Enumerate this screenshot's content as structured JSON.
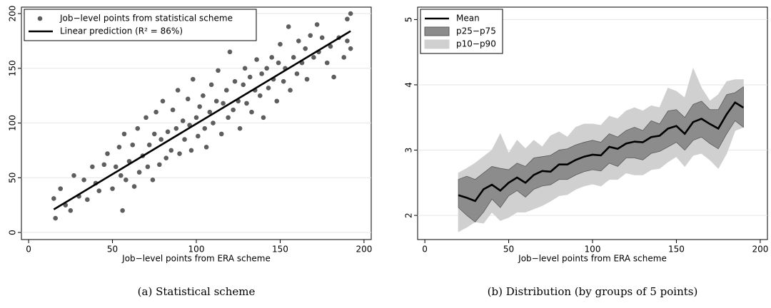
{
  "chart_data": [
    {
      "type": "scatter",
      "caption": "(a) Statistical scheme",
      "x_label": "Job−level points from ERA scheme",
      "xlim": [
        -4.3,
        204.3
      ],
      "ylim": [
        -6.5,
        205.9
      ],
      "xticks": [
        0,
        50,
        100,
        150,
        200
      ],
      "yticks": [
        0,
        50,
        100,
        150,
        200
      ],
      "grid": true,
      "legend": "top-left",
      "series": [
        {
          "name": "Job−level points from statistical scheme",
          "style": "markers",
          "color": "#5e5e5e",
          "x": [
            15,
            16,
            19,
            22,
            25,
            27,
            30,
            33,
            35,
            38,
            40,
            42,
            45,
            47,
            50,
            52,
            54,
            55,
            56,
            57,
            58,
            60,
            62,
            63,
            65,
            66,
            68,
            70,
            71,
            72,
            74,
            75,
            76,
            78,
            79,
            80,
            82,
            83,
            85,
            86,
            88,
            89,
            90,
            92,
            93,
            95,
            96,
            97,
            98,
            100,
            101,
            102,
            104,
            105,
            106,
            108,
            109,
            110,
            112,
            113,
            115,
            116,
            118,
            119,
            120,
            122,
            123,
            125,
            126,
            128,
            129,
            130,
            132,
            133,
            135,
            136,
            138,
            139,
            140,
            142,
            143,
            145,
            146,
            148,
            149,
            150,
            152,
            153,
            155,
            156,
            158,
            160,
            161,
            163,
            165,
            166,
            168,
            170,
            172,
            173,
            175,
            178,
            180,
            182,
            185,
            188,
            190,
            192,
            192,
            190
          ],
          "values": [
            31,
            13,
            40,
            25,
            20,
            52,
            33,
            48,
            30,
            60,
            45,
            38,
            62,
            72,
            40,
            60,
            78,
            52,
            20,
            90,
            48,
            65,
            80,
            42,
            95,
            55,
            70,
            105,
            60,
            80,
            48,
            90,
            110,
            62,
            85,
            120,
            68,
            92,
            75,
            112,
            95,
            130,
            72,
            102,
            85,
            122,
            98,
            75,
            140,
            105,
            88,
            115,
            125,
            95,
            78,
            110,
            135,
            100,
            120,
            148,
            90,
            118,
            130,
            105,
            165,
            112,
            138,
            120,
            95,
            135,
            150,
            118,
            142,
            110,
            130,
            158,
            125,
            145,
            105,
            150,
            132,
            160,
            140,
            120,
            155,
            172,
            138,
            150,
            188,
            130,
            160,
            145,
            175,
            155,
            168,
            140,
            180,
            160,
            190,
            165,
            178,
            155,
            170,
            142,
            178,
            160,
            175,
            200,
            168,
            195
          ]
        },
        {
          "name": "Linear prediction (R² = 86%)",
          "style": "line",
          "color": "#000000",
          "x": [
            15,
            192
          ],
          "values": [
            21,
            184
          ]
        }
      ]
    },
    {
      "type": "line",
      "caption": "(b) Distribution (by groups of 5 points)",
      "x_label": "Job−level points from ERA scheme",
      "xlim": [
        -4.3,
        204.3
      ],
      "ylim": [
        1.63,
        5.19
      ],
      "xticks": [
        0,
        50,
        100,
        150,
        200
      ],
      "yticks": [
        2,
        3,
        4,
        5
      ],
      "grid": true,
      "legend": "top-left",
      "x": [
        20,
        25,
        30,
        35,
        40,
        45,
        50,
        55,
        60,
        65,
        70,
        75,
        80,
        85,
        90,
        95,
        100,
        105,
        110,
        115,
        120,
        125,
        130,
        135,
        140,
        145,
        150,
        155,
        160,
        165,
        170,
        175,
        180,
        185,
        190
      ],
      "series": [
        {
          "name": "Mean",
          "style": "line",
          "color": "#000000",
          "values": [
            2.31,
            2.27,
            2.22,
            2.4,
            2.47,
            2.38,
            2.5,
            2.58,
            2.5,
            2.62,
            2.68,
            2.67,
            2.78,
            2.78,
            2.85,
            2.9,
            2.93,
            2.92,
            3.05,
            3.02,
            3.1,
            3.13,
            3.12,
            3.2,
            3.22,
            3.33,
            3.37,
            3.25,
            3.43,
            3.48,
            3.4,
            3.33,
            3.55,
            3.73,
            3.65
          ]
        },
        {
          "name": "p25−p75",
          "style": "band",
          "color": "#8c8c8c",
          "lower": [
            2.12,
            2.0,
            1.9,
            2.05,
            2.25,
            2.12,
            2.3,
            2.38,
            2.28,
            2.4,
            2.45,
            2.47,
            2.55,
            2.55,
            2.62,
            2.67,
            2.7,
            2.68,
            2.8,
            2.75,
            2.88,
            2.88,
            2.85,
            2.95,
            2.98,
            3.05,
            3.12,
            3.0,
            3.15,
            3.2,
            3.1,
            3.02,
            3.25,
            3.45,
            3.35
          ],
          "upper": [
            2.55,
            2.6,
            2.55,
            2.65,
            2.75,
            2.72,
            2.7,
            2.8,
            2.75,
            2.88,
            2.9,
            2.92,
            3.0,
            3.02,
            3.08,
            3.12,
            3.15,
            3.12,
            3.25,
            3.2,
            3.3,
            3.35,
            3.3,
            3.45,
            3.4,
            3.6,
            3.62,
            3.5,
            3.7,
            3.75,
            3.62,
            3.62,
            3.85,
            3.88,
            3.97
          ]
        },
        {
          "name": "p10−p90",
          "style": "band",
          "color": "#d0d0d0",
          "lower": [
            1.75,
            1.82,
            1.9,
            1.88,
            2.05,
            1.92,
            1.97,
            2.05,
            2.05,
            2.1,
            2.15,
            2.22,
            2.3,
            2.32,
            2.4,
            2.45,
            2.48,
            2.45,
            2.55,
            2.55,
            2.65,
            2.62,
            2.62,
            2.7,
            2.72,
            2.82,
            2.9,
            2.75,
            2.92,
            2.95,
            2.85,
            2.72,
            2.95,
            3.3,
            3.35
          ],
          "upper": [
            2.65,
            2.72,
            2.8,
            2.9,
            3.0,
            3.25,
            2.95,
            3.15,
            3.02,
            3.15,
            3.05,
            3.22,
            3.28,
            3.2,
            3.35,
            3.4,
            3.4,
            3.38,
            3.52,
            3.48,
            3.6,
            3.65,
            3.6,
            3.68,
            3.65,
            3.95,
            3.9,
            3.8,
            4.25,
            3.95,
            3.75,
            3.85,
            4.05,
            4.08,
            4.08
          ]
        }
      ]
    }
  ]
}
